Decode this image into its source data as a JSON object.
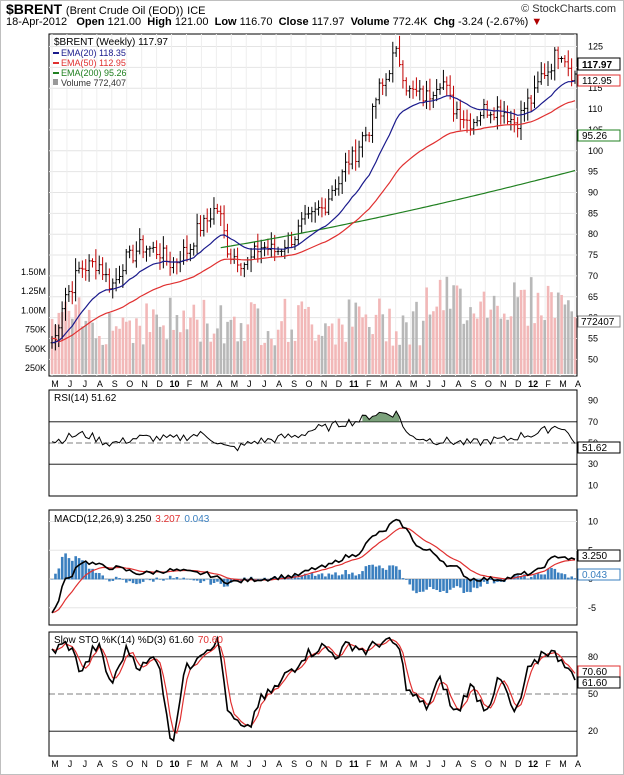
{
  "header": {
    "symbol": "$BRENT",
    "description": "(Brent Crude Oil (EOD))",
    "exchange": "ICE",
    "brand": "© StockCharts.com",
    "date": "18-Apr-2012",
    "open_label": "Open",
    "open": "121.00",
    "high_label": "High",
    "high": "121.00",
    "low_label": "Low",
    "low": "116.70",
    "close_label": "Close",
    "close": "117.97",
    "volume_label": "Volume",
    "volume": "772.4K",
    "chg_label": "Chg",
    "chg": "-3.24 (-2.67%)",
    "chg_arrow": "▼"
  },
  "colors": {
    "ema20": "#1a1a8c",
    "ema50": "#e03030",
    "ema200": "#208020",
    "vol_up": "#f2b8b8",
    "vol_down": "#b8b8b8",
    "bar_up": "#000000",
    "bar_down": "#c00000",
    "rsi_fill": "#5a8a5a",
    "macd_hist": "#3a7fbf",
    "signal": "#e03030"
  },
  "legend": {
    "price": "$BRENT (Weekly) 117.97",
    "ema20": "EMA(20) 118.35",
    "ema50": "EMA(50) 112.95",
    "ema200": "EMA(200) 95.26",
    "volume": "Volume 772,407"
  },
  "price_tags": {
    "close": "117.97",
    "ema50": "112.95",
    "ema200": "95.26",
    "volume": "772407"
  },
  "rsi_legend": "RSI(14) 51.62",
  "rsi_tag": "51.62",
  "macd_legend": {
    "main": "MACD(12,26,9) 3.250",
    "signal": "3.207",
    "hist": "0.043"
  },
  "macd_tags": {
    "macd": "3.250",
    "hist": "0.043"
  },
  "sto_legend": {
    "main": "Slow STO %K(14) %D(3) 61.60",
    "d": "70.60"
  },
  "sto_tags": {
    "d": "70.60",
    "k": "61.60"
  },
  "x_axis_labels": [
    "M",
    "J",
    "J",
    "A",
    "S",
    "O",
    "N",
    "D",
    "10",
    "F",
    "M",
    "A",
    "M",
    "J",
    "J",
    "A",
    "S",
    "O",
    "N",
    "D",
    "11",
    "F",
    "M",
    "A",
    "M",
    "J",
    "J",
    "A",
    "S",
    "O",
    "N",
    "D",
    "12",
    "F",
    "M",
    "A"
  ],
  "chart_data": [
    {
      "type": "ohlc",
      "title": "$BRENT (Weekly)",
      "y_ticks": [
        125,
        120,
        115,
        110,
        105,
        100,
        95,
        90,
        85,
        80,
        75,
        70,
        65,
        60,
        55,
        50
      ],
      "volume_ticks": [
        "1.50M",
        "1.25M",
        "1.00M",
        "750K",
        "500K",
        "250K"
      ],
      "ylim": [
        46,
        128
      ],
      "anchors_close": [
        {
          "m": 0,
          "v": 54
        },
        {
          "m": 1,
          "v": 66
        },
        {
          "m": 2,
          "v": 72
        },
        {
          "m": 3,
          "v": 73
        },
        {
          "m": 4,
          "v": 68
        },
        {
          "m": 5,
          "v": 74
        },
        {
          "m": 6,
          "v": 77
        },
        {
          "m": 7,
          "v": 76
        },
        {
          "m": 8,
          "v": 73
        },
        {
          "m": 9,
          "v": 76
        },
        {
          "m": 10,
          "v": 82
        },
        {
          "m": 11,
          "v": 86
        },
        {
          "m": 12,
          "v": 75
        },
        {
          "m": 13,
          "v": 73
        },
        {
          "m": 14,
          "v": 77
        },
        {
          "m": 15,
          "v": 76
        },
        {
          "m": 16,
          "v": 79
        },
        {
          "m": 17,
          "v": 83
        },
        {
          "m": 18,
          "v": 86
        },
        {
          "m": 19,
          "v": 92
        },
        {
          "m": 20,
          "v": 98
        },
        {
          "m": 21,
          "v": 104
        },
        {
          "m": 22,
          "v": 115
        },
        {
          "m": 23,
          "v": 123
        },
        {
          "m": 24,
          "v": 114
        },
        {
          "m": 25,
          "v": 113
        },
        {
          "m": 26,
          "v": 117
        },
        {
          "m": 27,
          "v": 110
        },
        {
          "m": 28,
          "v": 107
        },
        {
          "m": 29,
          "v": 110
        },
        {
          "m": 30,
          "v": 110
        },
        {
          "m": 31,
          "v": 107
        },
        {
          "m": 32,
          "v": 112
        },
        {
          "m": 33,
          "v": 119
        },
        {
          "m": 34,
          "v": 124
        },
        {
          "m": 35,
          "v": 118
        }
      ],
      "series": [
        {
          "name": "EMA(20)",
          "last": 118.35
        },
        {
          "name": "EMA(50)",
          "last": 112.95
        },
        {
          "name": "EMA(200)",
          "last": 95.26
        },
        {
          "name": "Volume",
          "last": 772407
        }
      ]
    },
    {
      "type": "line",
      "title": "RSI(14)",
      "y_ticks": [
        90,
        70,
        50,
        30,
        10
      ],
      "ylim": [
        0,
        100
      ],
      "anchors": [
        {
          "m": 0,
          "v": 52
        },
        {
          "m": 2,
          "v": 58
        },
        {
          "m": 4,
          "v": 50
        },
        {
          "m": 6,
          "v": 55
        },
        {
          "m": 8,
          "v": 54
        },
        {
          "m": 10,
          "v": 58
        },
        {
          "m": 12,
          "v": 45
        },
        {
          "m": 14,
          "v": 52
        },
        {
          "m": 16,
          "v": 56
        },
        {
          "m": 18,
          "v": 64
        },
        {
          "m": 20,
          "v": 70
        },
        {
          "m": 22,
          "v": 78
        },
        {
          "m": 23,
          "v": 78
        },
        {
          "m": 24,
          "v": 56
        },
        {
          "m": 26,
          "v": 52
        },
        {
          "m": 28,
          "v": 50
        },
        {
          "m": 30,
          "v": 53
        },
        {
          "m": 32,
          "v": 58
        },
        {
          "m": 34,
          "v": 66
        },
        {
          "m": 35,
          "v": 52
        }
      ],
      "last": 51.62
    },
    {
      "type": "line",
      "title": "MACD(12,26,9)",
      "y_ticks": [
        10,
        5,
        0,
        -5
      ],
      "ylim": [
        -8,
        12
      ],
      "anchors": [
        {
          "m": 0,
          "v": -6
        },
        {
          "m": 1,
          "v": 0
        },
        {
          "m": 2,
          "v": 3
        },
        {
          "m": 4,
          "v": 2
        },
        {
          "m": 6,
          "v": 1
        },
        {
          "m": 8,
          "v": 1.5
        },
        {
          "m": 10,
          "v": 1
        },
        {
          "m": 12,
          "v": -0.5
        },
        {
          "m": 14,
          "v": 0
        },
        {
          "m": 16,
          "v": 0.5
        },
        {
          "m": 18,
          "v": 2
        },
        {
          "m": 20,
          "v": 4
        },
        {
          "m": 22,
          "v": 8
        },
        {
          "m": 23,
          "v": 10
        },
        {
          "m": 25,
          "v": 5
        },
        {
          "m": 27,
          "v": 2
        },
        {
          "m": 28,
          "v": 0
        },
        {
          "m": 30,
          "v": 0
        },
        {
          "m": 32,
          "v": 1
        },
        {
          "m": 34,
          "v": 4
        },
        {
          "m": 35,
          "v": 3.25
        }
      ],
      "last": {
        "macd": 3.25,
        "signal": 3.207,
        "histogram": 0.043
      }
    },
    {
      "type": "line",
      "title": "Slow STO %K(14) %D(3)",
      "y_ticks": [
        80,
        50,
        20
      ],
      "ylim": [
        0,
        100
      ],
      "anchors": [
        {
          "m": 0,
          "v": 85
        },
        {
          "m": 1,
          "v": 90
        },
        {
          "m": 2,
          "v": 70
        },
        {
          "m": 3,
          "v": 88
        },
        {
          "m": 4,
          "v": 60
        },
        {
          "m": 5,
          "v": 85
        },
        {
          "m": 6,
          "v": 72
        },
        {
          "m": 7,
          "v": 80
        },
        {
          "m": 8,
          "v": 15
        },
        {
          "m": 9,
          "v": 70
        },
        {
          "m": 10,
          "v": 85
        },
        {
          "m": 11,
          "v": 92
        },
        {
          "m": 12,
          "v": 30
        },
        {
          "m": 13,
          "v": 20
        },
        {
          "m": 14,
          "v": 45
        },
        {
          "m": 15,
          "v": 55
        },
        {
          "m": 16,
          "v": 70
        },
        {
          "m": 17,
          "v": 82
        },
        {
          "m": 18,
          "v": 88
        },
        {
          "m": 19,
          "v": 82
        },
        {
          "m": 20,
          "v": 90
        },
        {
          "m": 21,
          "v": 85
        },
        {
          "m": 22,
          "v": 92
        },
        {
          "m": 23,
          "v": 90
        },
        {
          "m": 24,
          "v": 50
        },
        {
          "m": 25,
          "v": 40
        },
        {
          "m": 26,
          "v": 60
        },
        {
          "m": 27,
          "v": 35
        },
        {
          "m": 28,
          "v": 55
        },
        {
          "m": 29,
          "v": 40
        },
        {
          "m": 30,
          "v": 60
        },
        {
          "m": 31,
          "v": 35
        },
        {
          "m": 32,
          "v": 70
        },
        {
          "m": 33,
          "v": 85
        },
        {
          "m": 34,
          "v": 80
        },
        {
          "m": 35,
          "v": 62
        }
      ],
      "last": {
        "k": 61.6,
        "d": 70.6
      }
    }
  ]
}
